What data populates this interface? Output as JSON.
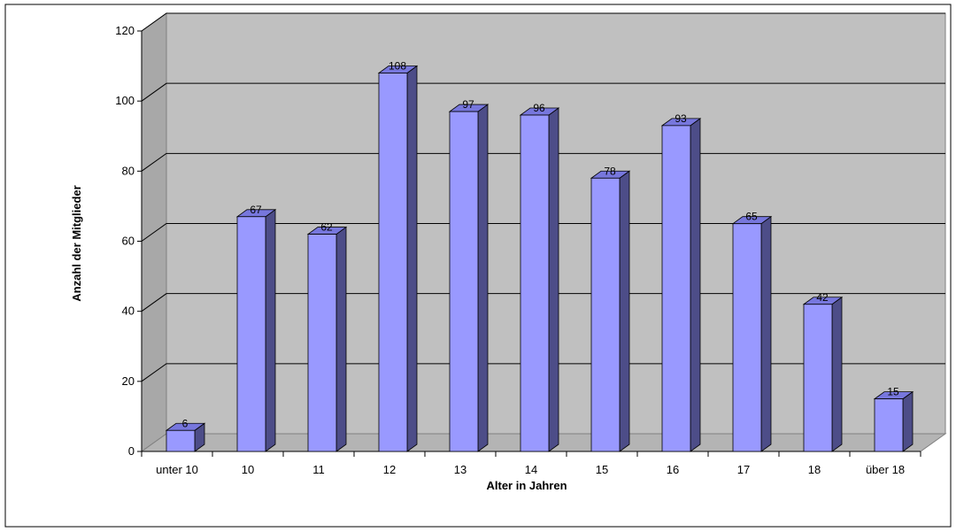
{
  "chart_data": {
    "type": "bar",
    "categories": [
      "unter 10",
      "10",
      "11",
      "12",
      "13",
      "14",
      "15",
      "16",
      "17",
      "18",
      "über 18"
    ],
    "values": [
      6,
      67,
      62,
      108,
      97,
      96,
      78,
      93,
      65,
      42,
      15
    ],
    "xlabel": "Alter in Jahren",
    "ylabel": "Anzahl der Mitglieder",
    "ylim": [
      0,
      120
    ],
    "yticks": [
      0,
      20,
      40,
      60,
      80,
      100,
      120
    ],
    "grid": true,
    "three_d": true,
    "data_labels": true,
    "legend": "none"
  },
  "colors": {
    "plot_back_wall": "#c0c0c0",
    "plot_side_wall": "#a8a8a8",
    "floor": "#b4b4b4",
    "bar_front": "#9999ff",
    "bar_top": "#7777dd",
    "bar_side": "#4d4d88",
    "gridline": "#000000",
    "text": "#000000"
  }
}
